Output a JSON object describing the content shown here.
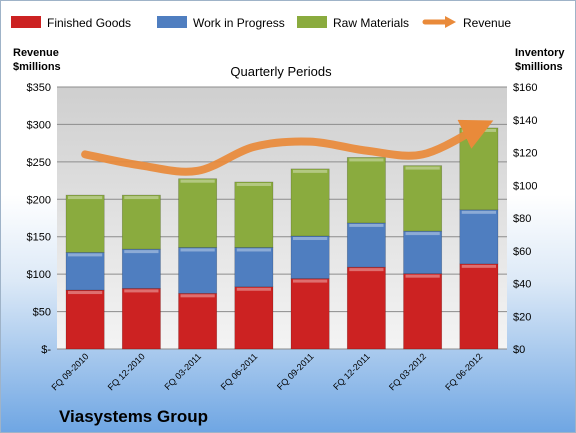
{
  "chart_data": {
    "type": "bar",
    "subtitle": "Quarterly Periods",
    "company": "Viasystems Group",
    "left_axis_title": [
      "Revenue",
      "$millions"
    ],
    "right_axis_title": [
      "Inventory",
      "$millions"
    ],
    "categories": [
      "FQ 09-2010",
      "FQ 12-2010",
      "FQ 03-2011",
      "FQ 06-2011",
      "FQ 09-2011",
      "FQ 12-2011",
      "FQ 03-2012",
      "FQ 06-2012"
    ],
    "left_axis": {
      "min": 0,
      "max": 350,
      "step": 50,
      "ticks": [
        "$-",
        "$50",
        "$100",
        "$150",
        "$200",
        "$250",
        "$300",
        "$350"
      ]
    },
    "right_axis": {
      "min": 0,
      "max": 160,
      "step": 20,
      "ticks": [
        "$0",
        "$20",
        "$40",
        "$60",
        "$80",
        "$100",
        "$120",
        "$140",
        "$160"
      ]
    },
    "stack_axis": "right",
    "series": [
      {
        "name": "Finished Goods",
        "kind": "bar",
        "color": "#cc2222",
        "values": [
          36,
          37,
          34,
          38,
          43,
          50,
          46,
          52
        ]
      },
      {
        "name": "Work in Progress",
        "kind": "bar",
        "color": "#4f7ec0",
        "values": [
          23,
          24,
          28,
          24,
          26,
          27,
          26,
          33
        ]
      },
      {
        "name": "Raw Materials",
        "kind": "bar",
        "color": "#8aab3e",
        "values": [
          35,
          33,
          42,
          40,
          41,
          40,
          40,
          50
        ]
      },
      {
        "name": "Revenue",
        "kind": "line",
        "color": "#e98a3a",
        "axis": "left",
        "values": [
          260,
          245,
          238,
          270,
          277,
          265,
          260,
          296
        ]
      }
    ],
    "grid": true,
    "legend": "top"
  }
}
